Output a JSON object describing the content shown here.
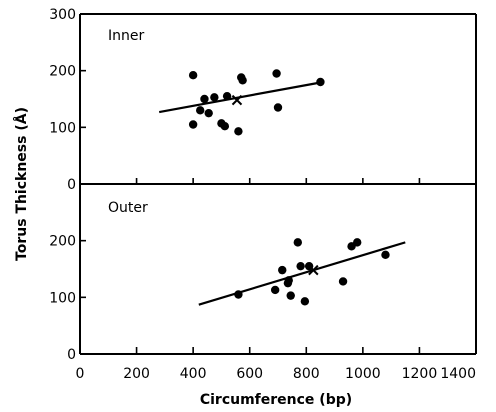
{
  "chart_data": {
    "type": "scatter",
    "xlabel": "Circumference (bp)",
    "ylabel": "Torus Thickness (Å)",
    "xlim": [
      0,
      1400
    ],
    "x_ticks": [
      0,
      200,
      400,
      600,
      800,
      1000,
      1200,
      1400
    ],
    "ylim": [
      0,
      300
    ],
    "y_ticks_inner": [
      0,
      100,
      200,
      300
    ],
    "y_ticks_outer": [
      0,
      100,
      200
    ],
    "grid": false,
    "legend": "none",
    "panels": [
      {
        "label": "Inner",
        "points": [
          {
            "x": 400,
            "y": 192
          },
          {
            "x": 400,
            "y": 105
          },
          {
            "x": 425,
            "y": 130
          },
          {
            "x": 440,
            "y": 150
          },
          {
            "x": 455,
            "y": 125
          },
          {
            "x": 475,
            "y": 153
          },
          {
            "x": 500,
            "y": 107
          },
          {
            "x": 512,
            "y": 102
          },
          {
            "x": 520,
            "y": 155
          },
          {
            "x": 560,
            "y": 93
          },
          {
            "x": 570,
            "y": 188
          },
          {
            "x": 575,
            "y": 183
          },
          {
            "x": 695,
            "y": 195
          },
          {
            "x": 700,
            "y": 135
          },
          {
            "x": 850,
            "y": 180
          }
        ],
        "mean": {
          "x": 555,
          "y": 148
        },
        "fit": [
          {
            "x": 280,
            "y": 127
          },
          {
            "x": 860,
            "y": 180
          }
        ]
      },
      {
        "label": "Outer",
        "points": [
          {
            "x": 560,
            "y": 105
          },
          {
            "x": 690,
            "y": 113
          },
          {
            "x": 715,
            "y": 148
          },
          {
            "x": 735,
            "y": 125
          },
          {
            "x": 738,
            "y": 130
          },
          {
            "x": 745,
            "y": 103
          },
          {
            "x": 770,
            "y": 197
          },
          {
            "x": 780,
            "y": 155
          },
          {
            "x": 795,
            "y": 93
          },
          {
            "x": 810,
            "y": 155
          },
          {
            "x": 930,
            "y": 128
          },
          {
            "x": 960,
            "y": 190
          },
          {
            "x": 980,
            "y": 197
          },
          {
            "x": 1080,
            "y": 175
          }
        ],
        "mean": {
          "x": 825,
          "y": 148
        },
        "fit": [
          {
            "x": 420,
            "y": 87
          },
          {
            "x": 1150,
            "y": 197
          }
        ]
      }
    ]
  }
}
